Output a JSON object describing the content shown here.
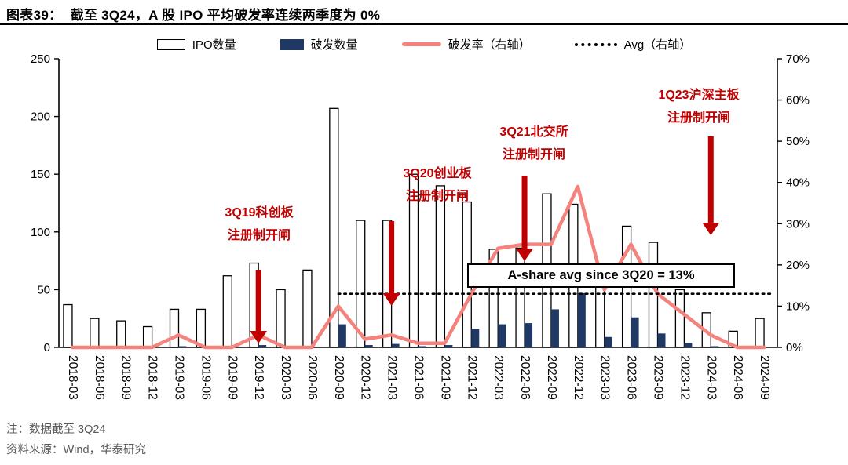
{
  "header": {
    "title": "图表39：  截至 3Q24，A 股 IPO 平均破发率连续两季度为 0%"
  },
  "legend": [
    {
      "label": "IPO数量"
    },
    {
      "label": "破发数量"
    },
    {
      "label": "破发率（右轴）"
    },
    {
      "label": "Avg（右轴）"
    }
  ],
  "colors": {
    "break_line": "#F4827D",
    "break_bar": "#1F3864",
    "annotation_red": "#C00000",
    "axis": "#000000"
  },
  "annotations": {
    "a1": {
      "line1": "3Q19科创板",
      "line2": "注册制开闸"
    },
    "a2": {
      "line1": "3Q20创业板",
      "line2": "注册制开闸"
    },
    "a3": {
      "line1": "3Q21北交所",
      "line2": "注册制开闸"
    },
    "a4": {
      "line1": "1Q23沪深主板",
      "line2": "注册制开闸"
    },
    "avg_box": "A-share avg since 3Q20 = 13%"
  },
  "footer": {
    "note": "注：数据截至 3Q24",
    "source": "资料来源：Wind，华泰研究"
  },
  "chart_data": {
    "type": "bar+line",
    "title": "截至 3Q24，A 股 IPO 平均破发率连续两季度为 0%",
    "categories": [
      "2018-03",
      "2018-06",
      "2018-09",
      "2018-12",
      "2019-03",
      "2019-06",
      "2019-09",
      "2019-12",
      "2020-03",
      "2020-06",
      "2020-09",
      "2020-12",
      "2021-03",
      "2021-06",
      "2021-09",
      "2021-12",
      "2022-03",
      "2022-06",
      "2022-09",
      "2022-12",
      "2023-03",
      "2023-06",
      "2023-09",
      "2023-12",
      "2024-03",
      "2024-06",
      "2024-09"
    ],
    "series": [
      {
        "name": "IPO数量",
        "type": "bar",
        "axis": "left",
        "values": [
          37,
          25,
          23,
          18,
          33,
          33,
          62,
          73,
          50,
          67,
          207,
          110,
          110,
          150,
          140,
          126,
          85,
          86,
          133,
          124,
          65,
          105,
          91,
          50,
          30,
          14,
          25
        ]
      },
      {
        "name": "破发数量",
        "type": "bar",
        "axis": "left",
        "values": [
          0,
          0,
          0,
          0,
          1,
          0,
          0,
          2,
          0,
          0,
          20,
          2,
          3,
          1,
          2,
          16,
          20,
          21,
          33,
          47,
          9,
          26,
          12,
          4,
          1,
          0,
          0
        ]
      },
      {
        "name": "破发率（右轴）",
        "type": "line",
        "axis": "right",
        "unit": "%",
        "values": [
          0,
          0,
          0,
          0,
          3,
          0,
          0,
          3,
          0,
          0,
          10,
          2,
          3,
          1,
          1,
          13,
          24,
          25,
          25,
          39,
          14,
          25,
          13,
          8,
          3,
          0,
          0
        ]
      },
      {
        "name": "Avg（右轴）",
        "type": "dotted-line",
        "axis": "right",
        "value": 13,
        "from_category": "2020-09"
      }
    ],
    "left_axis": {
      "min": 0,
      "max": 250,
      "ticks": [
        0,
        50,
        100,
        150,
        200,
        250
      ]
    },
    "right_axis": {
      "min": 0,
      "max": 70,
      "ticks": [
        "0%",
        "10%",
        "20%",
        "30%",
        "40%",
        "50%",
        "60%",
        "70%"
      ]
    },
    "legend_position": "top",
    "grid": false,
    "arrow_anchors": [
      "2019-12",
      "2021-03",
      "2022-06",
      "2024-03"
    ]
  }
}
